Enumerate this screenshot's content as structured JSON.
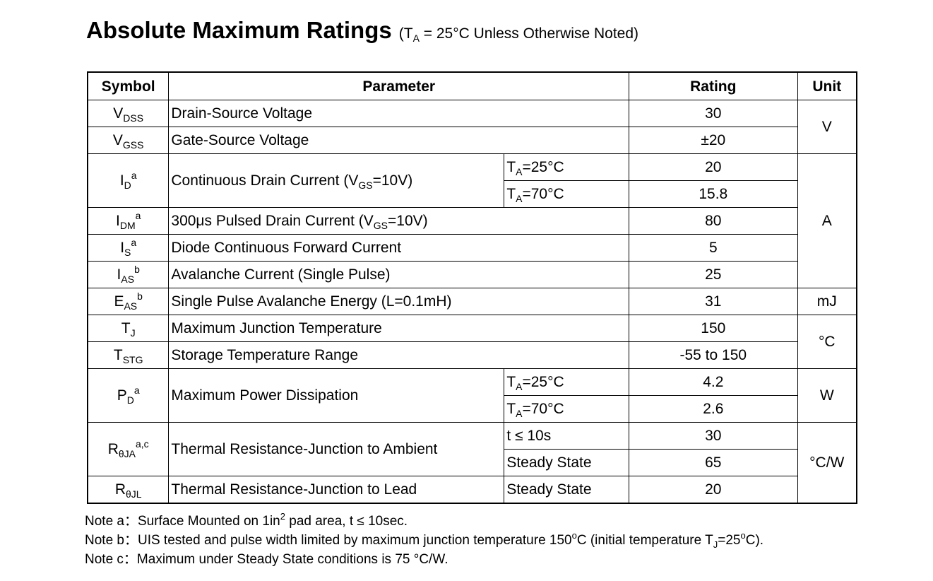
{
  "header": {
    "title": "Absolute Maximum Ratings",
    "condition": [
      "(T",
      "A",
      " = 25°C Unless Otherwise Noted)"
    ]
  },
  "table": {
    "columns": [
      "Symbol",
      "Parameter",
      "Rating",
      "Unit"
    ],
    "rows": [
      {
        "symbol": [
          "V",
          "DSS"
        ],
        "parameter": "Drain-Source Voltage",
        "rating": "30",
        "unit": "V"
      },
      {
        "symbol": [
          "V",
          "GSS"
        ],
        "parameter": "Gate-Source Voltage",
        "rating": "±20"
      },
      {
        "symbol": [
          "I",
          "D",
          "a"
        ],
        "parameter": [
          "Continuous Drain Current (V",
          "GS",
          "=10V)"
        ],
        "condition": [
          "T",
          "A",
          "=25°C"
        ],
        "rating": "20",
        "unit": "A"
      },
      {
        "condition": [
          "T",
          "A",
          "=70°C"
        ],
        "rating": "15.8"
      },
      {
        "symbol": [
          "I",
          "DM",
          "a"
        ],
        "parameter": [
          "300μs Pulsed Drain Current (V",
          "GS",
          "=10V)"
        ],
        "rating": "80"
      },
      {
        "symbol": [
          "I",
          "S",
          "a"
        ],
        "parameter": "Diode Continuous Forward Current",
        "rating": "5"
      },
      {
        "symbol": [
          "I",
          "AS",
          "b"
        ],
        "parameter": "Avalanche Current (Single Pulse)",
        "rating": "25"
      },
      {
        "symbol": [
          "E",
          "AS",
          "b"
        ],
        "parameter": "Single Pulse Avalanche Energy (L=0.1mH)",
        "rating": "31",
        "unit": "mJ"
      },
      {
        "symbol": [
          "T",
          "J"
        ],
        "parameter": "Maximum Junction Temperature",
        "rating": "150",
        "unit": "°C"
      },
      {
        "symbol": [
          "T",
          "STG"
        ],
        "parameter": "Storage Temperature Range",
        "rating": "-55 to 150"
      },
      {
        "symbol": [
          "P",
          "D",
          "a"
        ],
        "parameter": "Maximum Power Dissipation",
        "condition": [
          "T",
          "A",
          "=25°C"
        ],
        "rating": "4.2",
        "unit": "W"
      },
      {
        "condition": [
          "T",
          "A",
          "=70°C"
        ],
        "rating": "2.6"
      },
      {
        "symbol": [
          "R",
          "θJA",
          "a,c"
        ],
        "parameter": "Thermal Resistance-Junction to Ambient",
        "condition": "t ≤ 10s",
        "rating": "30",
        "unit": "°C/W"
      },
      {
        "condition": "Steady State",
        "rating": "65"
      },
      {
        "symbol": [
          "R",
          "θJL"
        ],
        "parameter": "Thermal Resistance-Junction to Lead",
        "condition": "Steady State",
        "rating": "20"
      }
    ]
  },
  "notes": [
    [
      "Note a：",
      "Surface Mounted on 1in",
      "2",
      " pad area, t ≤ 10sec."
    ],
    [
      "Note b：",
      "UIS tested and pulse width limited by maximum junction temperature 150",
      "o",
      "C (initial temperature T",
      "J",
      "=25",
      "o",
      "C)."
    ],
    [
      "Note c：",
      "Maximum under Steady State conditions is 75 °C/W."
    ]
  ]
}
